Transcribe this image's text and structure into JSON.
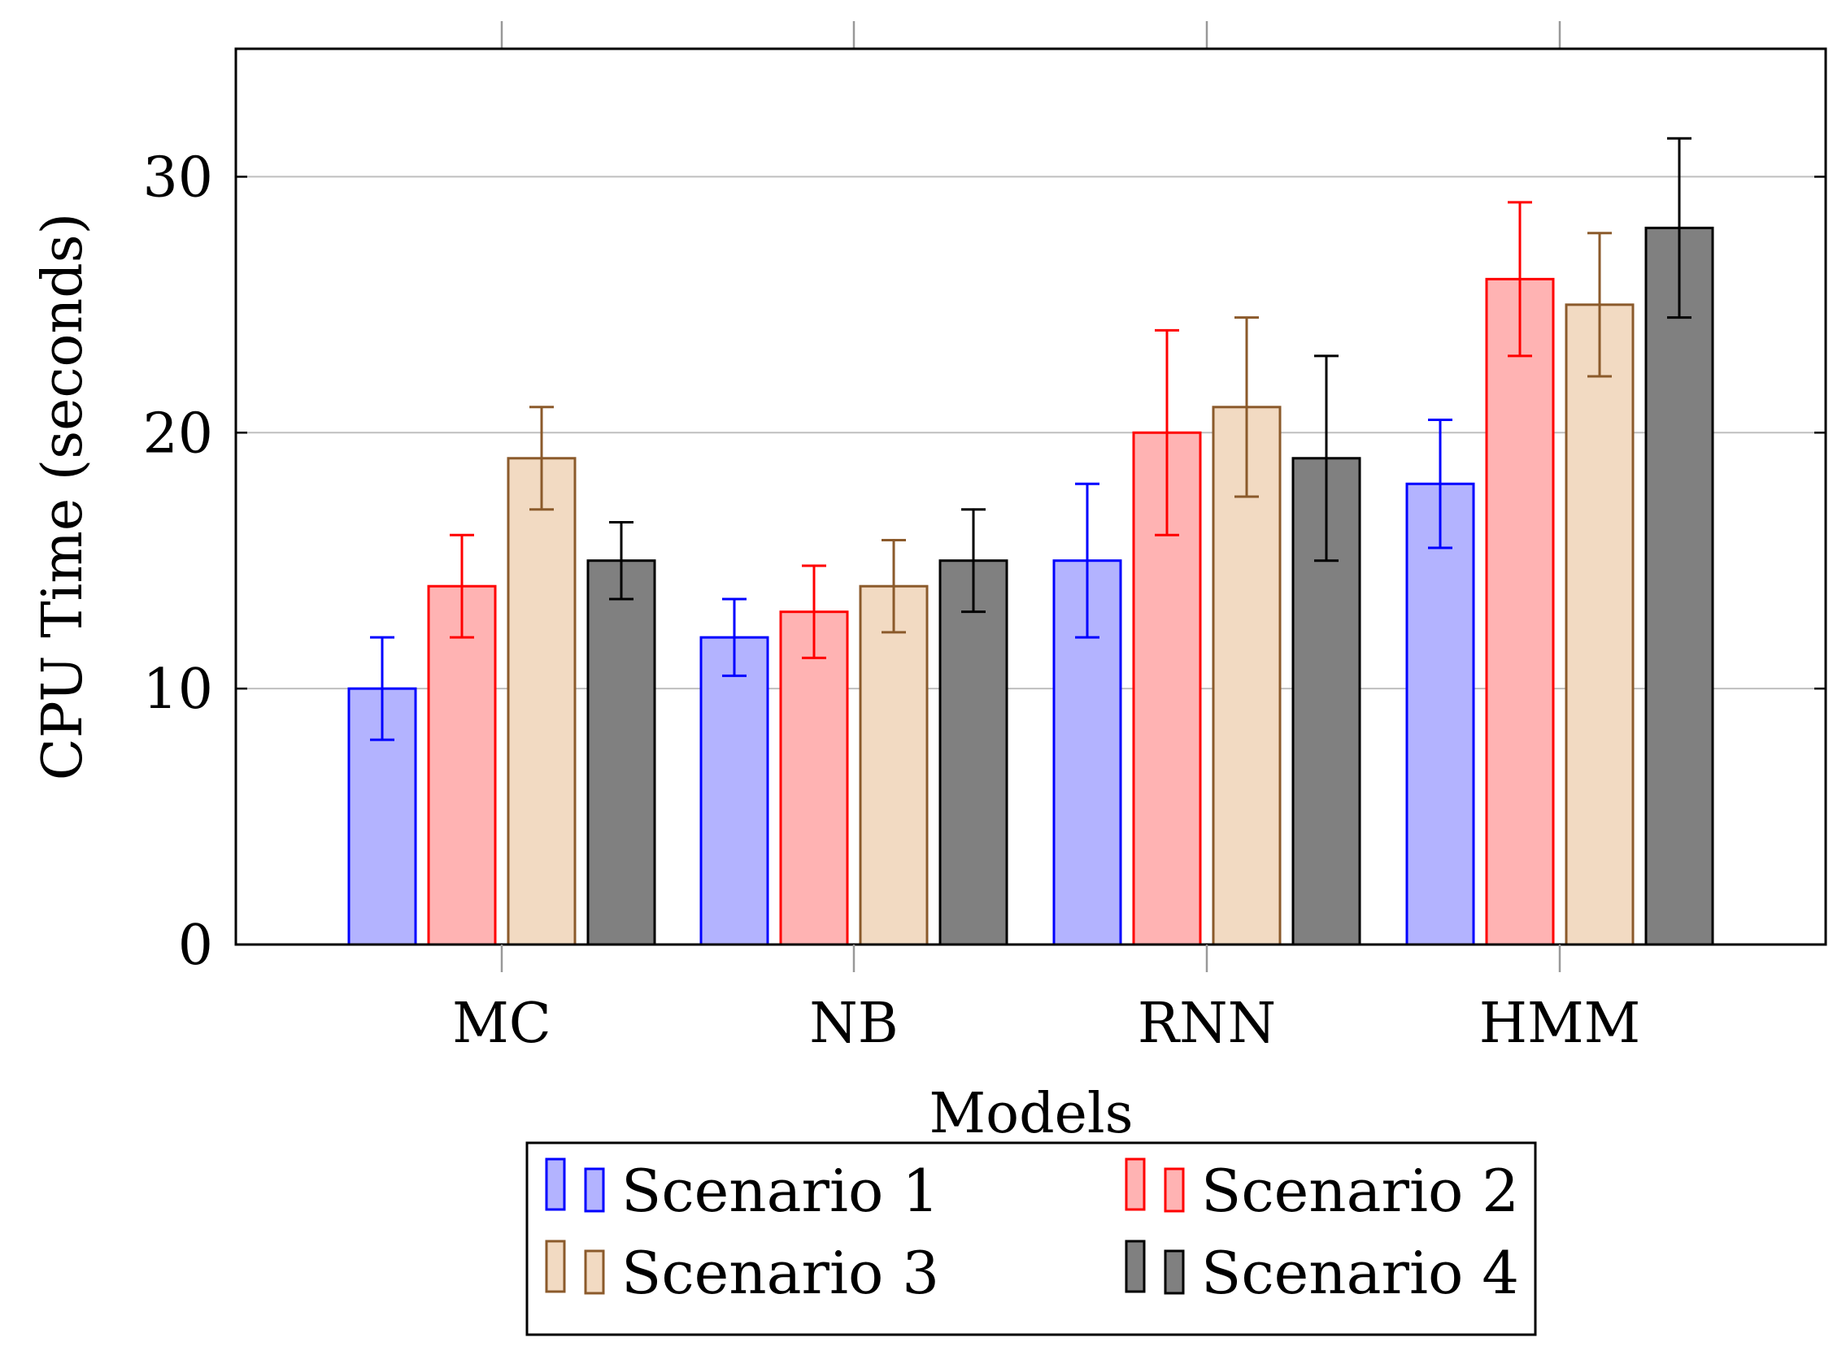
{
  "chart_data": {
    "type": "bar",
    "title": "",
    "xlabel": "Models",
    "ylabel": "CPU Time (seconds)",
    "categories": [
      "MC",
      "NB",
      "RNN",
      "HMM"
    ],
    "ylim": [
      0,
      35
    ],
    "yticks": [
      0,
      10,
      20,
      30
    ],
    "grid": "y-major",
    "legend_position": "bottom-center",
    "series": [
      {
        "name": "Scenario 1",
        "stroke": "#0000ff",
        "fill": "#b3b3ff",
        "values": [
          10,
          12,
          15,
          18
        ],
        "err_low": [
          8,
          10.5,
          12,
          15.5
        ],
        "err_high": [
          12,
          13.5,
          18,
          20.5
        ]
      },
      {
        "name": "Scenario 2",
        "stroke": "#ff0000",
        "fill": "#ffb3b3",
        "values": [
          14,
          13,
          20,
          26
        ],
        "err_low": [
          12,
          11.2,
          16,
          23
        ],
        "err_high": [
          16,
          14.8,
          24,
          29
        ]
      },
      {
        "name": "Scenario 3",
        "stroke": "#8b5a2b",
        "fill": "#f2dac2",
        "values": [
          19,
          14,
          21,
          25
        ],
        "err_low": [
          17,
          12.2,
          17.5,
          22.2
        ],
        "err_high": [
          21,
          15.8,
          24.5,
          27.8
        ]
      },
      {
        "name": "Scenario 4",
        "stroke": "#000000",
        "fill": "#808080",
        "values": [
          15,
          15,
          19,
          28
        ],
        "err_low": [
          13.5,
          13,
          15,
          24.5
        ],
        "err_high": [
          16.5,
          17,
          23,
          31.5
        ]
      }
    ]
  }
}
